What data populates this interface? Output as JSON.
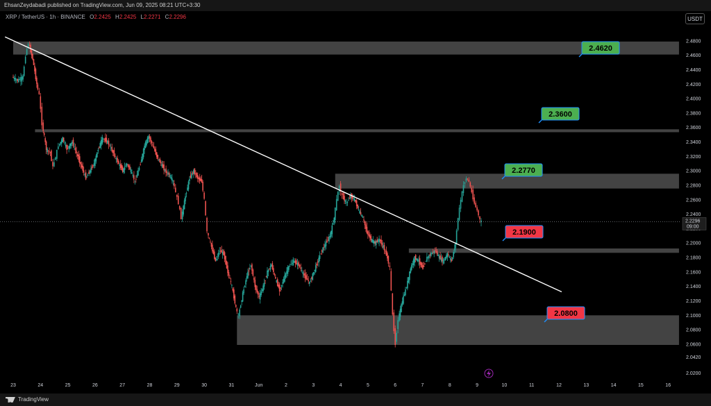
{
  "header": {
    "publish_text": "EhsanZeydabadi published on TradingView.com, Jun 09, 2025 08:21 UTC+3:30",
    "symbol": "XRP / TetherUS · 1h · BINANCE",
    "ohlc": [
      {
        "label": "O",
        "value": "2.2425"
      },
      {
        "label": "H",
        "value": "2.2425"
      },
      {
        "label": "L",
        "value": "2.2271"
      },
      {
        "label": "C",
        "value": "2.2296"
      }
    ],
    "currency": "USDT"
  },
  "footer": {
    "brand": "TradingView"
  },
  "colors": {
    "up": "#26a69a",
    "down": "#ef5350",
    "zone": "#5a5a5a",
    "trendline": "#ffffff",
    "label_green": "#4caf50",
    "label_red": "#f23645",
    "label_border": "#1e90ff"
  },
  "chart_data": {
    "type": "candlestick",
    "y_axis": {
      "min": 2.01,
      "max": 2.5,
      "ticks": [
        "2.4800",
        "2.4600",
        "2.4400",
        "2.4200",
        "2.4000",
        "2.3800",
        "2.3600",
        "2.3400",
        "2.3200",
        "2.3000",
        "2.2800",
        "2.2600",
        "2.2400",
        "2.2200",
        "2.2000",
        "2.1800",
        "2.1600",
        "2.1400",
        "2.1200",
        "2.1000",
        "2.0800",
        "2.0600",
        "2.0420",
        "2.0200"
      ]
    },
    "x_axis": {
      "labels": [
        "23",
        "24",
        "25",
        "26",
        "27",
        "28",
        "29",
        "30",
        "31",
        "Jun",
        "2",
        "3",
        "4",
        "5",
        "6",
        "7",
        "8",
        "9",
        "10",
        "11",
        "12",
        "13",
        "14",
        "15",
        "16"
      ]
    },
    "last_price": {
      "value": 2.2296,
      "label": "2.2296",
      "countdown": "09:00"
    },
    "zones": [
      {
        "top": 2.479,
        "bottom": 2.461,
        "from_day": 0,
        "to_day": 24.4,
        "label": "2.4620",
        "label_color": "green"
      },
      {
        "top": 2.3575,
        "bottom": 2.3535,
        "from_day": 0.8,
        "to_day": 24.4,
        "label": "2.3600",
        "label_color": "green"
      },
      {
        "top": 2.296,
        "bottom": 2.2755,
        "from_day": 11.8,
        "to_day": 24.4,
        "label": "2.2770",
        "label_color": "green"
      },
      {
        "top": 2.1925,
        "bottom": 2.1865,
        "from_day": 14.5,
        "to_day": 24.4,
        "label": "2.1900",
        "label_color": "red"
      },
      {
        "top": 2.1,
        "bottom": 2.059,
        "from_day": 8.2,
        "to_day": 24.4,
        "label": "2.0800",
        "label_color": "red"
      }
    ],
    "trendline": {
      "start": {
        "day": -0.3,
        "price": 2.4855
      },
      "end": {
        "day": 20.1,
        "price": 2.1325
      }
    },
    "price_path": [
      [
        0.0,
        2.43
      ],
      [
        0.2,
        2.425
      ],
      [
        0.4,
        2.43
      ],
      [
        0.5,
        2.46
      ],
      [
        0.6,
        2.477
      ],
      [
        0.75,
        2.455
      ],
      [
        0.9,
        2.42
      ],
      [
        1.0,
        2.405
      ],
      [
        1.1,
        2.365
      ],
      [
        1.25,
        2.33
      ],
      [
        1.4,
        2.325
      ],
      [
        1.5,
        2.305
      ],
      [
        1.6,
        2.32
      ],
      [
        1.7,
        2.335
      ],
      [
        1.85,
        2.345
      ],
      [
        2.0,
        2.33
      ],
      [
        2.2,
        2.34
      ],
      [
        2.4,
        2.32
      ],
      [
        2.55,
        2.305
      ],
      [
        2.7,
        2.29
      ],
      [
        2.85,
        2.3
      ],
      [
        3.0,
        2.31
      ],
      [
        3.15,
        2.33
      ],
      [
        3.3,
        2.345
      ],
      [
        3.5,
        2.34
      ],
      [
        3.7,
        2.325
      ],
      [
        3.9,
        2.31
      ],
      [
        4.05,
        2.3
      ],
      [
        4.2,
        2.31
      ],
      [
        4.35,
        2.3
      ],
      [
        4.5,
        2.285
      ],
      [
        4.7,
        2.31
      ],
      [
        4.85,
        2.335
      ],
      [
        5.0,
        2.348
      ],
      [
        5.15,
        2.335
      ],
      [
        5.3,
        2.32
      ],
      [
        5.45,
        2.31
      ],
      [
        5.6,
        2.3
      ],
      [
        5.75,
        2.295
      ],
      [
        5.9,
        2.285
      ],
      [
        6.0,
        2.27
      ],
      [
        6.1,
        2.255
      ],
      [
        6.2,
        2.235
      ],
      [
        6.35,
        2.265
      ],
      [
        6.5,
        2.29
      ],
      [
        6.65,
        2.3
      ],
      [
        6.8,
        2.29
      ],
      [
        6.95,
        2.285
      ],
      [
        7.05,
        2.26
      ],
      [
        7.15,
        2.215
      ],
      [
        7.3,
        2.195
      ],
      [
        7.45,
        2.175
      ],
      [
        7.6,
        2.19
      ],
      [
        7.75,
        2.185
      ],
      [
        7.9,
        2.16
      ],
      [
        8.05,
        2.14
      ],
      [
        8.2,
        2.11
      ],
      [
        8.3,
        2.1
      ],
      [
        8.45,
        2.13
      ],
      [
        8.6,
        2.155
      ],
      [
        8.75,
        2.17
      ],
      [
        8.9,
        2.14
      ],
      [
        9.05,
        2.125
      ],
      [
        9.2,
        2.14
      ],
      [
        9.35,
        2.16
      ],
      [
        9.5,
        2.17
      ],
      [
        9.65,
        2.15
      ],
      [
        9.8,
        2.135
      ],
      [
        9.95,
        2.15
      ],
      [
        10.1,
        2.165
      ],
      [
        10.3,
        2.175
      ],
      [
        10.5,
        2.17
      ],
      [
        10.7,
        2.155
      ],
      [
        10.9,
        2.145
      ],
      [
        11.05,
        2.16
      ],
      [
        11.2,
        2.175
      ],
      [
        11.35,
        2.19
      ],
      [
        11.5,
        2.2
      ],
      [
        11.65,
        2.21
      ],
      [
        11.8,
        2.235
      ],
      [
        11.9,
        2.26
      ],
      [
        12.0,
        2.28
      ],
      [
        12.1,
        2.265
      ],
      [
        12.25,
        2.255
      ],
      [
        12.4,
        2.265
      ],
      [
        12.55,
        2.26
      ],
      [
        12.7,
        2.245
      ],
      [
        12.85,
        2.235
      ],
      [
        13.0,
        2.215
      ],
      [
        13.15,
        2.205
      ],
      [
        13.3,
        2.2
      ],
      [
        13.45,
        2.205
      ],
      [
        13.6,
        2.195
      ],
      [
        13.75,
        2.18
      ],
      [
        13.85,
        2.165
      ],
      [
        13.95,
        2.1
      ],
      [
        14.05,
        2.06
      ],
      [
        14.15,
        2.095
      ],
      [
        14.3,
        2.12
      ],
      [
        14.45,
        2.14
      ],
      [
        14.6,
        2.165
      ],
      [
        14.75,
        2.18
      ],
      [
        14.9,
        2.175
      ],
      [
        15.05,
        2.165
      ],
      [
        15.2,
        2.18
      ],
      [
        15.35,
        2.185
      ],
      [
        15.5,
        2.19
      ],
      [
        15.65,
        2.18
      ],
      [
        15.8,
        2.175
      ],
      [
        15.95,
        2.185
      ],
      [
        16.1,
        2.175
      ],
      [
        16.25,
        2.2
      ],
      [
        16.35,
        2.235
      ],
      [
        16.45,
        2.26
      ],
      [
        16.55,
        2.28
      ],
      [
        16.65,
        2.29
      ],
      [
        16.75,
        2.285
      ],
      [
        16.85,
        2.27
      ],
      [
        16.95,
        2.255
      ],
      [
        17.05,
        2.245
      ],
      [
        17.15,
        2.232
      ],
      [
        17.2,
        2.2296
      ]
    ]
  }
}
